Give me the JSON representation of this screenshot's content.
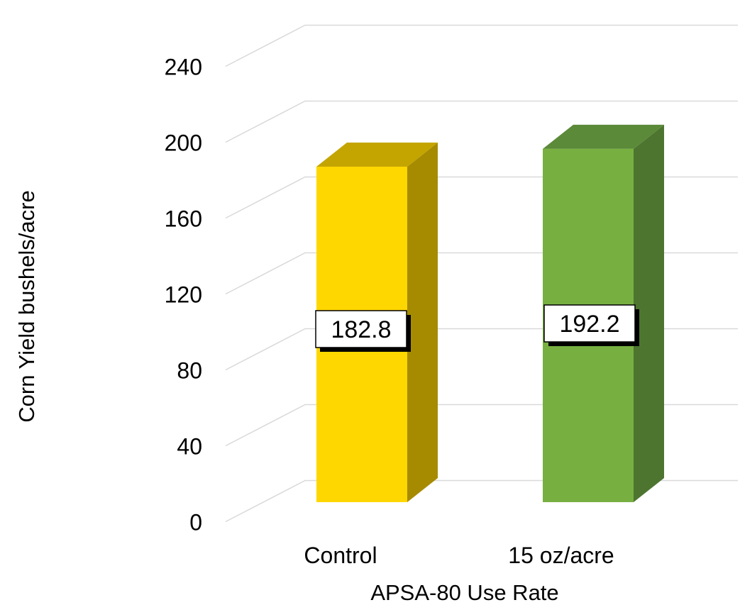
{
  "chart_data": {
    "type": "bar",
    "style": "3d-column",
    "categories": [
      "Control",
      "15 oz/acre"
    ],
    "values": [
      182.8,
      192.2
    ],
    "data_labels": [
      "182.8",
      "192.2"
    ],
    "bar_colors": [
      {
        "front": "#FFD700",
        "side": "#A68B00",
        "top": "#C4A500"
      },
      {
        "front": "#77B041",
        "side": "#4D7530",
        "top": "#5B8A38"
      }
    ],
    "title": "",
    "xlabel": "APSA-80 Use Rate",
    "ylabel": "Corn Yield  bushels/acre",
    "ylim": [
      0,
      240
    ],
    "yticks": [
      "0",
      "40",
      "80",
      "120",
      "160",
      "200",
      "240"
    ],
    "grid": true,
    "legend": "none"
  }
}
